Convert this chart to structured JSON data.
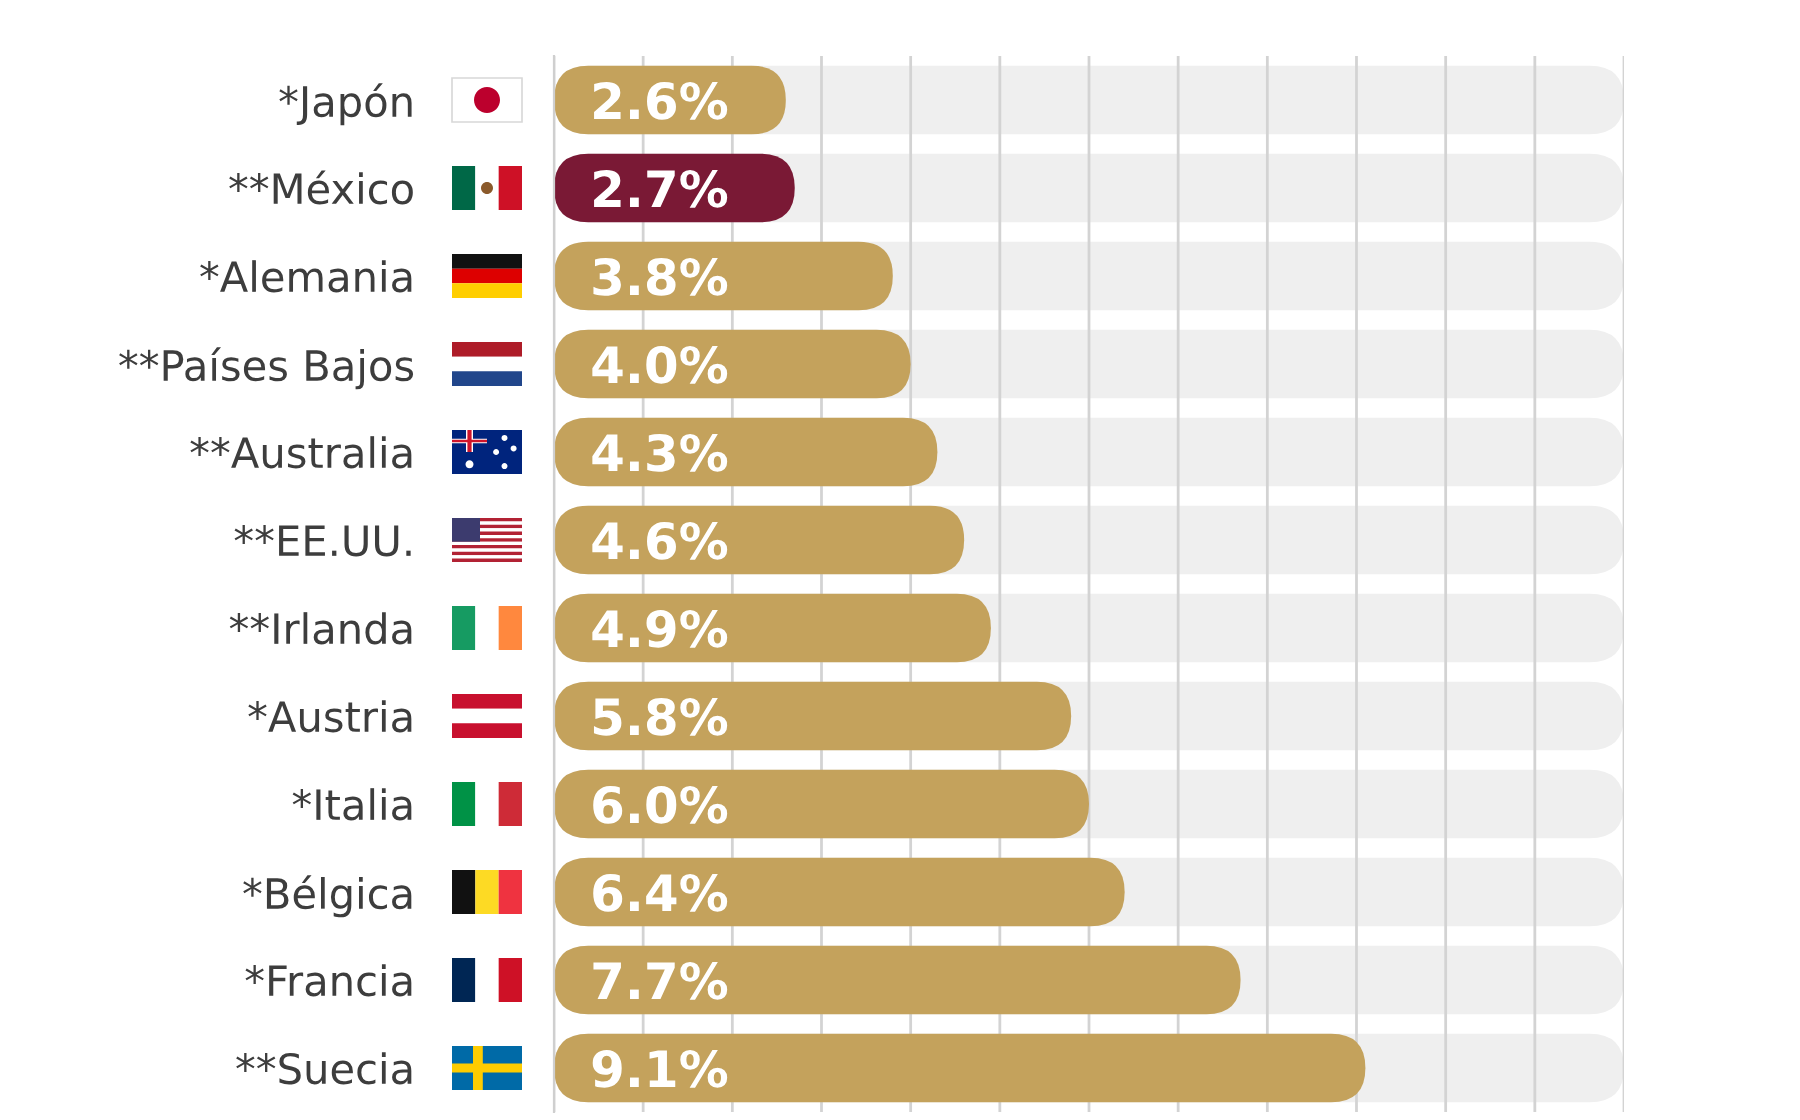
{
  "chart_data": {
    "type": "bar",
    "orientation": "horizontal",
    "categories": [
      "*Japón",
      "**México",
      "*Alemania",
      "**Países Bajos",
      "**Australia",
      "**EE.UU.",
      "**Irlanda",
      "*Austria",
      "*Italia",
      "*Bélgica",
      "*Francia",
      "**Suecia"
    ],
    "values": [
      2.6,
      2.7,
      3.8,
      4.0,
      4.3,
      4.6,
      4.9,
      5.8,
      6.0,
      6.4,
      7.7,
      9.1
    ],
    "value_labels": [
      "2.6%",
      "2.7%",
      "3.8%",
      "4.0%",
      "4.3%",
      "4.6%",
      "4.9%",
      "5.8%",
      "6.0%",
      "6.4%",
      "7.7%",
      "9.1%"
    ],
    "colors": [
      "#c4a25c",
      "#7a1935",
      "#c4a25c",
      "#c4a25c",
      "#c4a25c",
      "#c4a25c",
      "#c4a25c",
      "#c4a25c",
      "#c4a25c",
      "#c4a25c",
      "#c4a25c",
      "#c4a25c"
    ],
    "xlim": [
      0,
      12
    ],
    "xticks": [
      0,
      1,
      2,
      3,
      4,
      5,
      6,
      7,
      8,
      9,
      10,
      11,
      12
    ],
    "tick_labels": "y",
    "grid": "x"
  }
}
